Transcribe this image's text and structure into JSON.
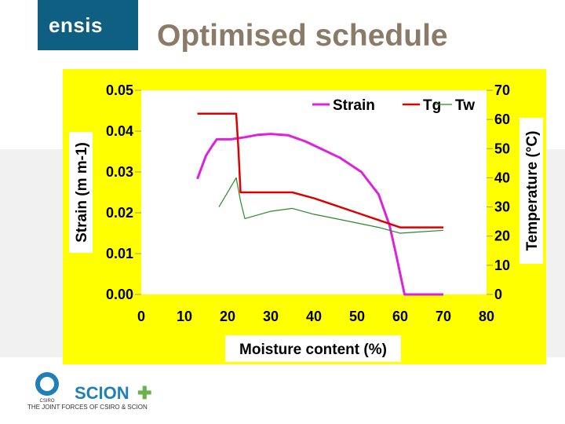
{
  "header": {
    "logo_text": "ensis",
    "title": "Optimised schedule"
  },
  "footer": {
    "tagline": "THE JOINT FORCES OF CSIRO & SCION",
    "csiro_logo_text": "CSIRO",
    "scion_logo_text": "SCION"
  },
  "colors": {
    "panel": "#ffff00",
    "strain": "#dd22dd",
    "tg": "#dd0000",
    "tw": "#2a8a2a",
    "title": "#8a7a68",
    "logo_bg": "#0f5f82",
    "scion_plus": "#6ab04c"
  },
  "chart_data": {
    "type": "line",
    "xlabel": "Moisture content (%)",
    "ylabel_left": "Strain (m m-1)",
    "ylabel_right": "Temperature (°C)",
    "xlim": [
      0,
      80
    ],
    "ylim_left": [
      0,
      0.05
    ],
    "ylim_right": [
      0,
      70
    ],
    "x_ticks": [
      "0",
      "10",
      "20",
      "30",
      "40",
      "50",
      "60",
      "70",
      "80"
    ],
    "y_left_ticks": [
      "0.00",
      "0.01",
      "0.02",
      "0.03",
      "0.04",
      "0.05"
    ],
    "y_right_ticks": [
      "0",
      "10",
      "20",
      "30",
      "40",
      "50",
      "60",
      "70"
    ],
    "legend": [
      "Strain",
      "Tg",
      "Tw"
    ],
    "series": [
      {
        "name": "Strain",
        "axis": "left",
        "x": [
          70,
          61,
          59,
          57.5,
          55,
          51,
          46,
          42,
          38,
          34,
          30,
          27,
          24,
          22,
          20.8,
          20,
          17.5,
          16.5,
          15,
          13
        ],
        "y": [
          0.0,
          0.0,
          0.01,
          0.017,
          0.0245,
          0.03,
          0.0335,
          0.0355,
          0.0375,
          0.039,
          0.0393,
          0.0391,
          0.0385,
          0.0382,
          0.038,
          0.038,
          0.038,
          0.0365,
          0.034,
          0.0283
        ]
      },
      {
        "name": "Tg",
        "axis": "right",
        "x": [
          13,
          22,
          22.5,
          23,
          30,
          35,
          40,
          45,
          50,
          55,
          60,
          65,
          70
        ],
        "y": [
          62,
          62,
          50,
          35,
          35,
          35,
          33,
          30.5,
          28,
          25.5,
          23,
          23,
          23
        ]
      },
      {
        "name": "Tw",
        "axis": "right",
        "x": [
          18,
          22,
          23,
          24,
          30,
          35,
          40,
          45,
          50,
          55,
          60,
          65,
          70
        ],
        "y": [
          30,
          40,
          32,
          26,
          28.5,
          29.5,
          27.5,
          26,
          24.5,
          23,
          21,
          21.5,
          22
        ]
      }
    ]
  }
}
